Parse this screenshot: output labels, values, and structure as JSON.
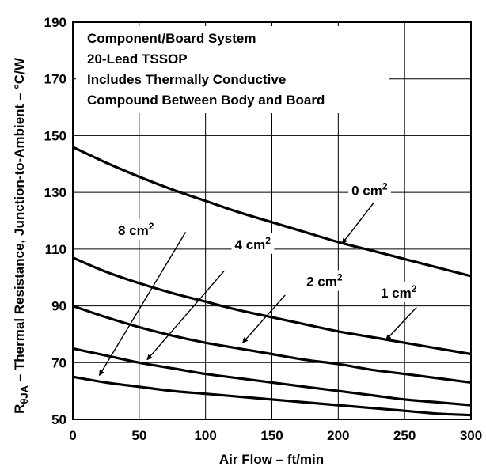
{
  "chart_data": {
    "type": "line",
    "title": "",
    "xlabel": "Air Flow – ft/min",
    "ylabel": {
      "main": "R",
      "subscript": "θJA",
      "rest": " – Thermal Resistance, Junction-to-Ambient – °C/W"
    },
    "xlim": [
      0,
      300
    ],
    "ylim": [
      50,
      190
    ],
    "x_ticks": [
      "0",
      "50",
      "100",
      "150",
      "200",
      "250",
      "300"
    ],
    "y_ticks": [
      "50",
      "70",
      "90",
      "110",
      "130",
      "150",
      "170",
      "190"
    ],
    "grid": true,
    "annotation_lines": [
      "Component/Board System",
      "20-Lead TSSOP",
      "Includes Thermally Conductive",
      "Compound Between Body and Board"
    ],
    "series": [
      {
        "name": "0 cm",
        "superscript": "2",
        "x": [
          0,
          25,
          50,
          75,
          100,
          125,
          150,
          175,
          200,
          225,
          250,
          275,
          300
        ],
        "y": [
          146,
          140.5,
          135.5,
          131,
          127,
          123,
          119.5,
          116,
          112.5,
          109.5,
          106.5,
          103.5,
          100.5
        ]
      },
      {
        "name": "1 cm",
        "superscript": "2",
        "x": [
          0,
          25,
          50,
          75,
          100,
          125,
          150,
          175,
          200,
          225,
          250,
          275,
          300
        ],
        "y": [
          107,
          102,
          98,
          94.5,
          91.5,
          88.5,
          86,
          83.5,
          81,
          79,
          77,
          75,
          73
        ]
      },
      {
        "name": "2 cm",
        "superscript": "2",
        "x": [
          0,
          25,
          50,
          75,
          100,
          125,
          150,
          175,
          200,
          225,
          250,
          275,
          300
        ],
        "y": [
          90,
          86,
          82.5,
          79.5,
          77,
          75,
          73,
          71,
          69.5,
          67.5,
          66,
          64.5,
          63
        ]
      },
      {
        "name": "4 cm",
        "superscript": "2",
        "x": [
          0,
          25,
          50,
          75,
          100,
          125,
          150,
          175,
          200,
          225,
          250,
          275,
          300
        ],
        "y": [
          75,
          72.5,
          70,
          68,
          66,
          64.5,
          63,
          61.5,
          60,
          58.5,
          57,
          56,
          55
        ]
      },
      {
        "name": "8 cm",
        "superscript": "2",
        "x": [
          0,
          25,
          50,
          75,
          100,
          125,
          150,
          175,
          200,
          225,
          250,
          275,
          300
        ],
        "y": [
          65,
          63,
          61.5,
          60,
          59,
          58,
          57,
          56,
          55,
          54,
          53,
          52,
          51.5
        ]
      }
    ],
    "callouts": [
      {
        "series": 0,
        "text_x": 210,
        "text_y": 129,
        "arrow_from": [
          227,
          126.5
        ],
        "arrow_to": [
          203,
          112
        ]
      },
      {
        "series": 1,
        "text_x": 232,
        "text_y": 93,
        "arrow_from": [
          259,
          89.5
        ],
        "arrow_to": [
          236,
          78
        ]
      },
      {
        "series": 2,
        "text_x": 176,
        "text_y": 97,
        "arrow_from": [
          160,
          93.8
        ],
        "arrow_to": [
          128,
          77
        ]
      },
      {
        "series": 3,
        "text_x": 122,
        "text_y": 110,
        "arrow_from": [
          114,
          102.3
        ],
        "arrow_to": [
          56,
          71
        ]
      },
      {
        "series": 4,
        "text_x": 34,
        "text_y": 115,
        "arrow_from": [
          85,
          116
        ],
        "arrow_to": [
          20,
          65.5
        ]
      }
    ]
  }
}
